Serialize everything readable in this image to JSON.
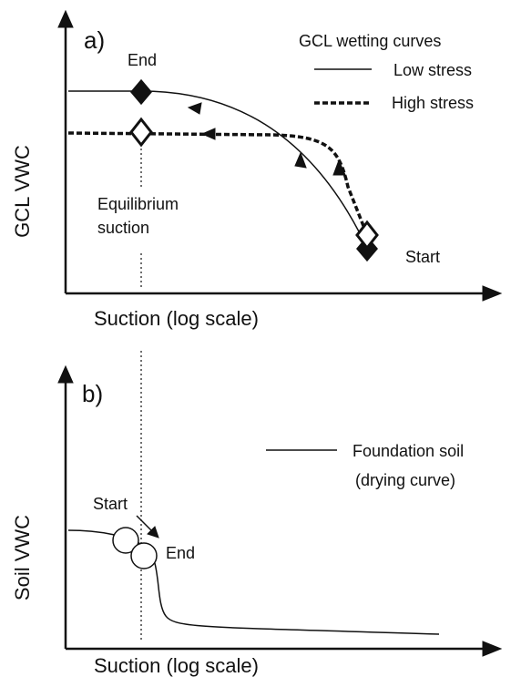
{
  "panel_a": {
    "label": "a)",
    "legend_title": "GCL wetting curves",
    "legend": [
      "Low stress",
      "High stress"
    ],
    "end_label": "End",
    "start_label": "Start",
    "annotation": [
      "Equilibrium",
      "suction"
    ],
    "y_axis_label": "GCL VWC",
    "x_axis_label": "Suction (log scale)"
  },
  "panel_b": {
    "label": "b)",
    "legend": [
      "Foundation soil",
      "(drying curve)"
    ],
    "start_label": "Start",
    "end_label": "End",
    "y_axis_label": "Soil VWC",
    "x_axis_label": "Suction (log scale)"
  }
}
